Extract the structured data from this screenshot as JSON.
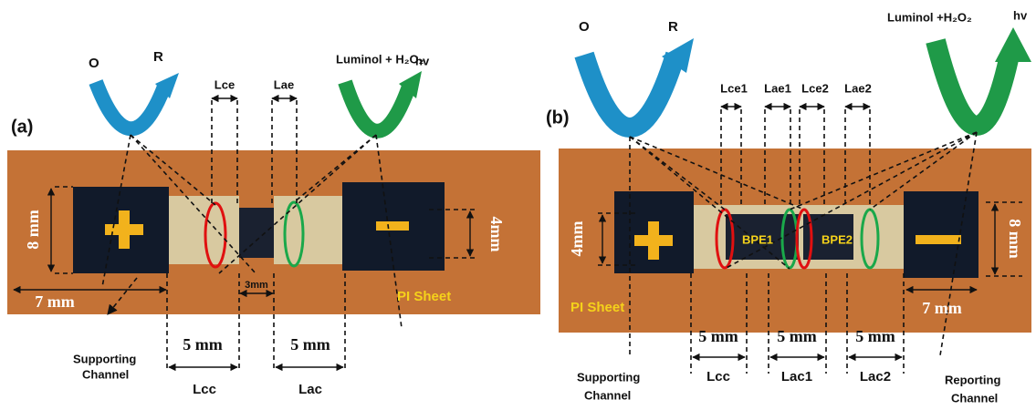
{
  "panel_a": {
    "label": "(a)",
    "oxidation": "O",
    "reduction": "R",
    "reagent": "Luminol + H₂O₂",
    "emission": "hv",
    "electrode_labels": [
      "Lce",
      "Lae"
    ],
    "dimensions": {
      "height": "8 mm",
      "channel_height": "4mm",
      "width": "7 mm",
      "gap": "3mm",
      "lcc_length": "5 mm",
      "lac_length": "5 mm"
    },
    "sheet": "PI Sheet",
    "channel_label": [
      "Supporting",
      "Channel"
    ],
    "lengths": [
      "Lcc",
      "Lac"
    ]
  },
  "panel_b": {
    "label": "(b)",
    "oxidation": "O",
    "reduction": "R",
    "reagent": "Luminol +H₂O₂",
    "emission": "hv",
    "electrode_labels": [
      "Lce1",
      "Lae1",
      "Lce2",
      "Lae2"
    ],
    "bpe_labels": [
      "BPE1",
      "BPE2"
    ],
    "dimensions": {
      "channel_height": "4mm",
      "height": "8 mm",
      "width": "7 mm",
      "lcc_length": "5 mm",
      "lac1_length": "5 mm",
      "lac2_length": "5 mm"
    },
    "sheet": "PI Sheet",
    "channel_label": [
      "Supporting",
      "Channel"
    ],
    "reporting_label": [
      "Reporting",
      "Channel"
    ],
    "lengths": [
      "Lcc",
      "Lac1",
      "Lac2"
    ]
  }
}
